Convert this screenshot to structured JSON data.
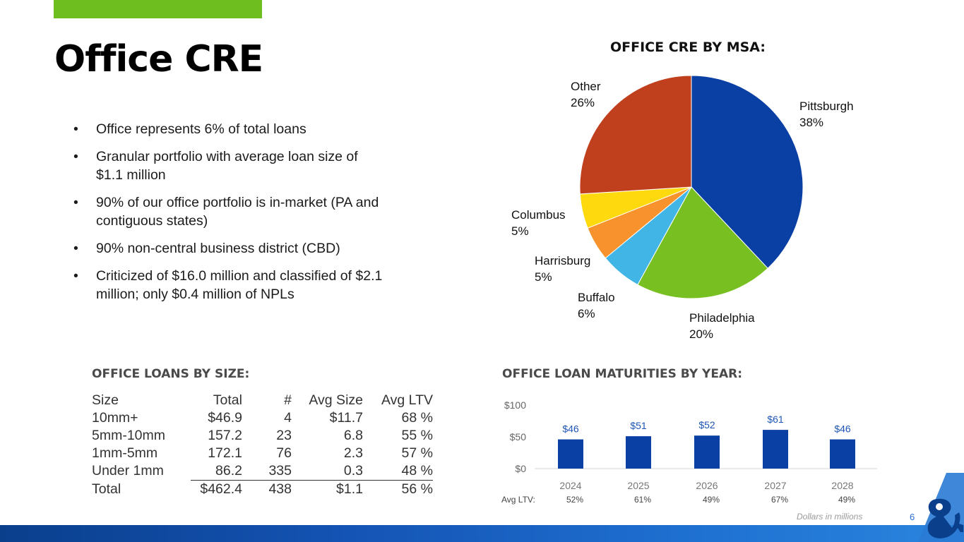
{
  "header": {
    "title": "Office CRE"
  },
  "bullets": [
    "Office represents 6% of total loans",
    "Granular portfolio with average loan size of $1.1 million",
    "90% of our office portfolio is in-market (PA and contiguous states)",
    "90% non-central business district (CBD)",
    "Criticized of $16.0 million and classified of $2.1 million; only $0.4 million of NPLs"
  ],
  "loans_by_size": {
    "title": "OFFICE LOANS BY SIZE:",
    "headers": [
      "Size",
      "Total",
      "#",
      "Avg Size",
      "Avg LTV"
    ],
    "rows": [
      [
        "10mm+",
        "$46.9",
        "4",
        "$11.7",
        "68 %"
      ],
      [
        "5mm-10mm",
        "157.2",
        "23",
        "6.8",
        "55 %"
      ],
      [
        "1mm-5mm",
        "172.1",
        "76",
        "2.3",
        "57 %"
      ],
      [
        "Under 1mm",
        "86.2",
        "335",
        "0.3",
        "48 %"
      ],
      [
        "Total",
        "$462.4",
        "438",
        "$1.1",
        "56 %"
      ]
    ]
  },
  "chart_data": [
    {
      "type": "pie",
      "title": "OFFICE CRE BY MSA:",
      "slices": [
        {
          "label": "Pittsburgh",
          "pct_label": "38%",
          "value": 38,
          "color": "#0a3fa3"
        },
        {
          "label": "Philadelphia",
          "pct_label": "20%",
          "value": 20,
          "color": "#78c021"
        },
        {
          "label": "Buffalo",
          "pct_label": "6%",
          "value": 6,
          "color": "#41b6e6"
        },
        {
          "label": "Harrisburg",
          "pct_label": "5%",
          "value": 5,
          "color": "#f7922c"
        },
        {
          "label": "Columbus",
          "pct_label": "5%",
          "value": 5,
          "color": "#fed90e"
        },
        {
          "label": "Other",
          "pct_label": "26%",
          "value": 26,
          "color": "#c0401e"
        }
      ]
    },
    {
      "type": "bar",
      "title": "OFFICE LOAN MATURITIES BY YEAR:",
      "categories": [
        "2024",
        "2025",
        "2026",
        "2027",
        "2028"
      ],
      "values": [
        46,
        51,
        52,
        61,
        46
      ],
      "value_labels": [
        "$46",
        "$51",
        "$52",
        "$61",
        "$46"
      ],
      "yticks": [
        0,
        50,
        100
      ],
      "ytick_labels": [
        "$0",
        "$50",
        "$100"
      ],
      "ylim": [
        0,
        100
      ],
      "bar_color": "#0a3fa3",
      "avg_ltv_label": "Avg LTV:",
      "avg_ltv": [
        "52%",
        "61%",
        "49%",
        "67%",
        "49%"
      ],
      "note": "Dollars in millions"
    }
  ],
  "footer": {
    "page_number": "6"
  }
}
